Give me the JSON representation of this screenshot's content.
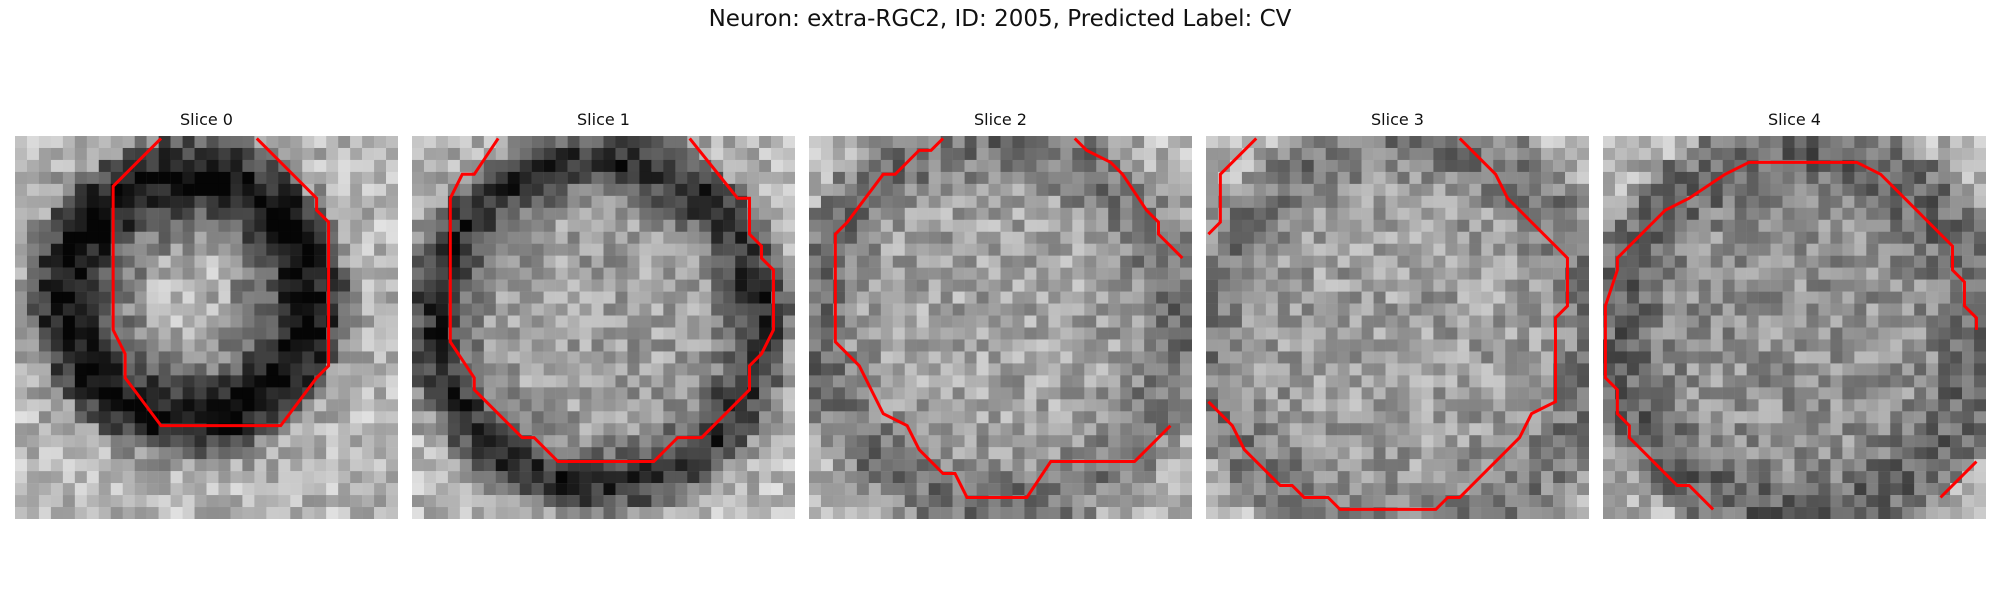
{
  "figure": {
    "title": "Neuron: extra-RGC2, ID: 2005, Predicted Label: CV"
  },
  "panels": [
    {
      "title": "Slice 0",
      "contour_color": "#ff0000"
    },
    {
      "title": "Slice 1",
      "contour_color": "#ff0000"
    },
    {
      "title": "Slice 2",
      "contour_color": "#ff0000"
    },
    {
      "title": "Slice 3",
      "contour_color": "#ff0000"
    },
    {
      "title": "Slice 4",
      "contour_color": "#ff0000"
    }
  ]
}
